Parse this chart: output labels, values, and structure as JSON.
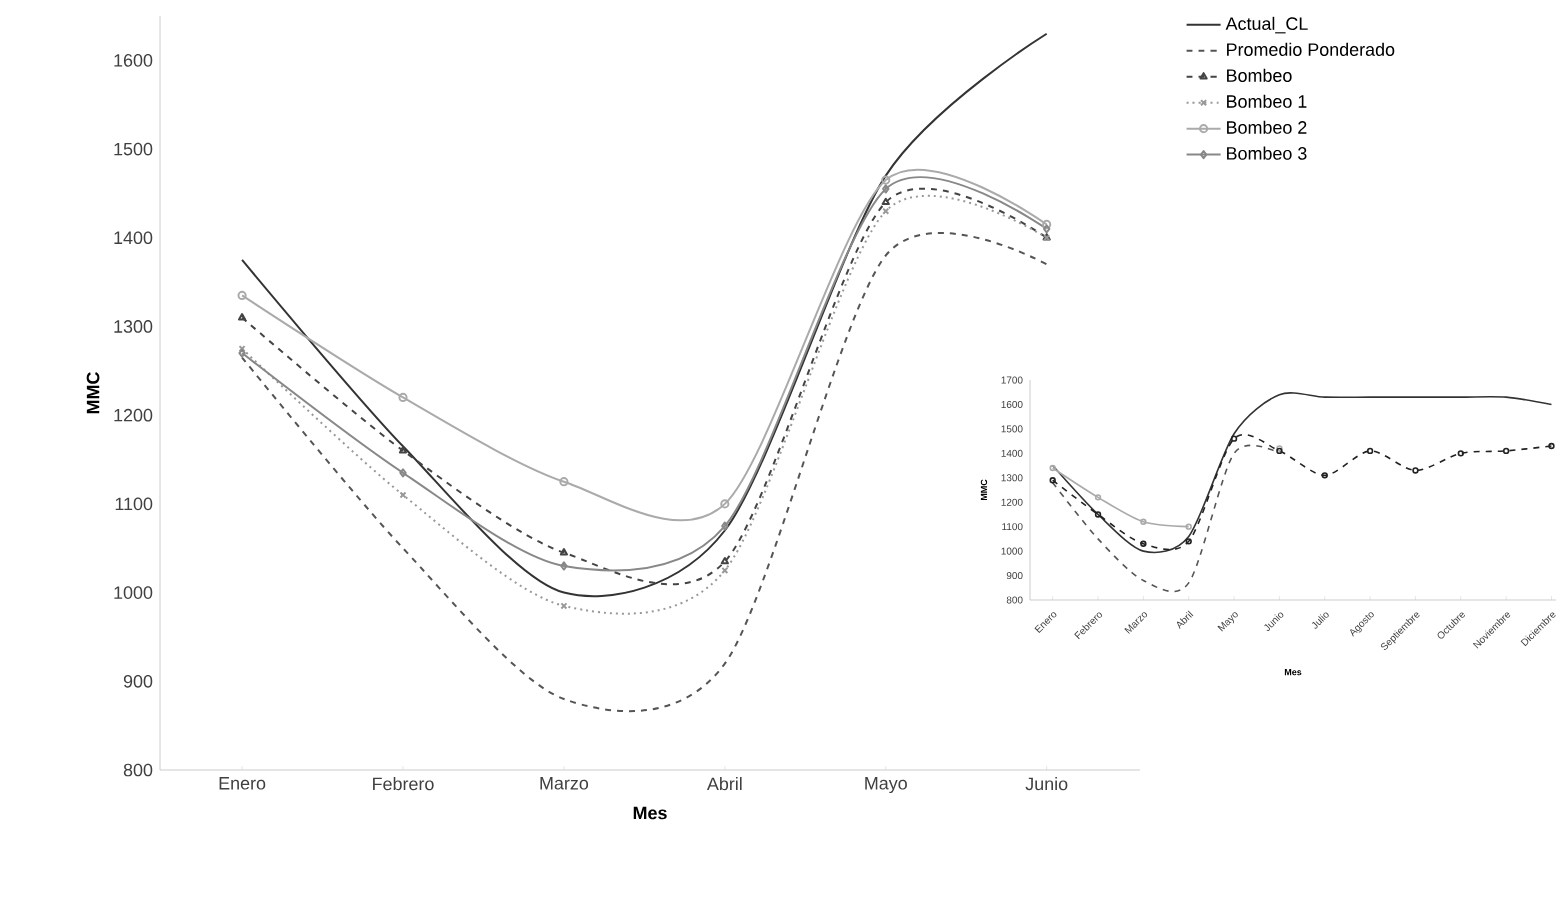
{
  "chart_data": [
    {
      "type": "line",
      "xlabel": "Mes",
      "ylabel": "MMC",
      "categories": [
        "Enero",
        "Febrero",
        "Marzo",
        "Abril",
        "Mayo",
        "Junio"
      ],
      "ylim": [
        800,
        1650
      ],
      "yticks": [
        800,
        900,
        1000,
        1100,
        1200,
        1300,
        1400,
        1500,
        1600
      ],
      "grid": false,
      "legend": "top right",
      "series": [
        {
          "name": "Actual_CL",
          "color": "#333333",
          "line_style": "solid",
          "marker": "none",
          "values": [
            1375,
            1165,
            1000,
            1070,
            1470,
            1630
          ]
        },
        {
          "name": "Promedio Ponderado",
          "color": "#555555",
          "line_style": "dashed",
          "marker": "none",
          "values": [
            1265,
            1050,
            880,
            920,
            1380,
            1370
          ]
        },
        {
          "name": "Bombeo",
          "color": "#444444",
          "line_style": "dashed",
          "marker": "triangle",
          "values": [
            1310,
            1160,
            1045,
            1035,
            1440,
            1400
          ]
        },
        {
          "name": "Bombeo 1",
          "color": "#999999",
          "line_style": "dotted",
          "marker": "cross",
          "values": [
            1275,
            1110,
            985,
            1025,
            1430,
            1400
          ]
        },
        {
          "name": "Bombeo 2",
          "color": "#aaaaaa",
          "line_style": "solid",
          "marker": "circle",
          "values": [
            1335,
            1220,
            1125,
            1100,
            1465,
            1415
          ]
        },
        {
          "name": "Bombeo 3",
          "color": "#888888",
          "line_style": "solid",
          "marker": "diamond",
          "values": [
            1270,
            1135,
            1030,
            1075,
            1455,
            1410
          ]
        }
      ]
    },
    {
      "type": "line",
      "xlabel": "Mes",
      "ylabel": "MMC",
      "categories": [
        "Enero",
        "Febrero",
        "Marzo",
        "Abril",
        "Mayo",
        "Junio",
        "Julio",
        "Agosto",
        "Septiembre",
        "Octubre",
        "Noviembre",
        "Diciembre"
      ],
      "ylim": [
        800,
        1700
      ],
      "yticks": [
        800,
        900,
        1000,
        1100,
        1200,
        1300,
        1400,
        1500,
        1600,
        1700
      ],
      "grid": false,
      "legend": false,
      "series": [
        {
          "color": "#333333",
          "line_style": "solid",
          "marker": "none",
          "values": [
            1350,
            1150,
            1000,
            1060,
            1480,
            1640,
            1630,
            1630,
            1630,
            1630,
            1630,
            1600
          ]
        },
        {
          "color": "#555555",
          "line_style": "dashed",
          "marker": "none",
          "values": [
            1280,
            1050,
            880,
            870,
            1400,
            1400,
            null,
            null,
            null,
            null,
            null,
            null
          ]
        },
        {
          "color": "#aaaaaa",
          "line_style": "solid",
          "marker": "circle",
          "values": [
            1340,
            1220,
            1120,
            1100,
            null,
            1420,
            null,
            null,
            null,
            null,
            null,
            null
          ]
        },
        {
          "color": "#222222",
          "line_style": "dashed",
          "marker": "circle",
          "values": [
            1290,
            1150,
            1030,
            1040,
            1460,
            1410,
            1310,
            1410,
            1330,
            1400,
            1410,
            1430
          ]
        }
      ]
    }
  ]
}
